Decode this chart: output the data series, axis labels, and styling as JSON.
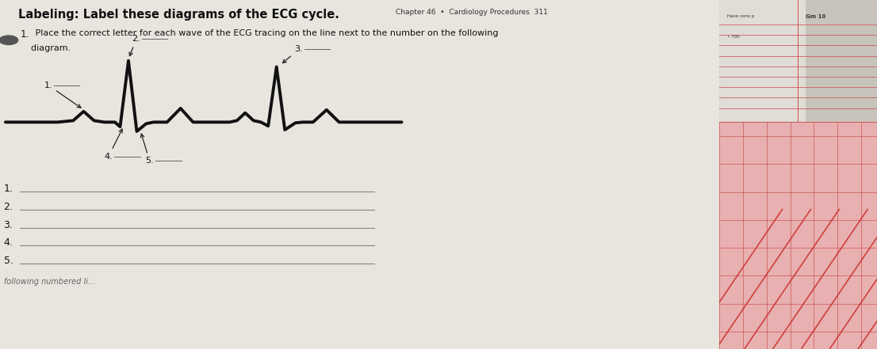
{
  "title": "Labeling: Label these diagrams of the ECG cycle.",
  "chapter_ref": "Chapter 46  •  Cardiology Procedures  311",
  "instruction_num": "1.",
  "instruction_text": " Place the correct letter for each wave of the ECG tracing on the line next to the number on the following",
  "instruction_text2": "    diagram.",
  "bg_color": "#c8c4bc",
  "page_color": "#e8e6e0",
  "right_bg": "#d4a0a0",
  "right_grid_color": "#b06060",
  "right_line_color": "#cc3333",
  "ecg_color": "#111111",
  "label_color": "#111111",
  "answer_line_color": "#888888",
  "ecg_lw": 2.8,
  "labels": [
    "1.",
    "2.",
    "3.",
    "4.",
    "5."
  ],
  "answer_labels": [
    "1.",
    "2.",
    "3.",
    "4.",
    "5."
  ]
}
